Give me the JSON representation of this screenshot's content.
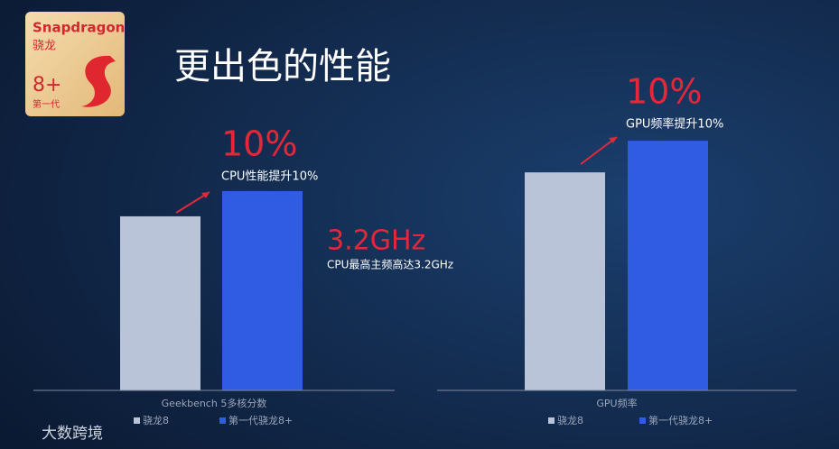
{
  "title": "更出色的性能",
  "logo": {
    "brand": "Snapdragon",
    "cn": "骁龙",
    "model": "8+",
    "gen": "第一代"
  },
  "watermark": "大数跨境",
  "chart_data": [
    {
      "type": "bar",
      "categories": [
        "Geekbench 5多核分数"
      ],
      "series": [
        {
          "name": "骁龙8",
          "color": "#b9c4d8",
          "values": [
            100
          ]
        },
        {
          "name": "第一代骁龙8+",
          "color": "#2f5ce2",
          "values": [
            110
          ]
        }
      ],
      "ylim": [
        31,
        140
      ],
      "annotations": [
        "10%",
        "CPU性能提升10%",
        "3.2GHz",
        "CPU最高主频高达3.2GHz"
      ]
    },
    {
      "type": "bar",
      "categories": [
        "GPU频率"
      ],
      "series": [
        {
          "name": "骁龙8",
          "color": "#b9c4d8",
          "values": [
            100
          ]
        },
        {
          "name": "第一代骁龙8+",
          "color": "#2f5ce2",
          "values": [
            110
          ]
        }
      ],
      "ylim": [
        31,
        140
      ],
      "annotations": [
        "10%",
        "GPU频率提升10%"
      ]
    }
  ]
}
